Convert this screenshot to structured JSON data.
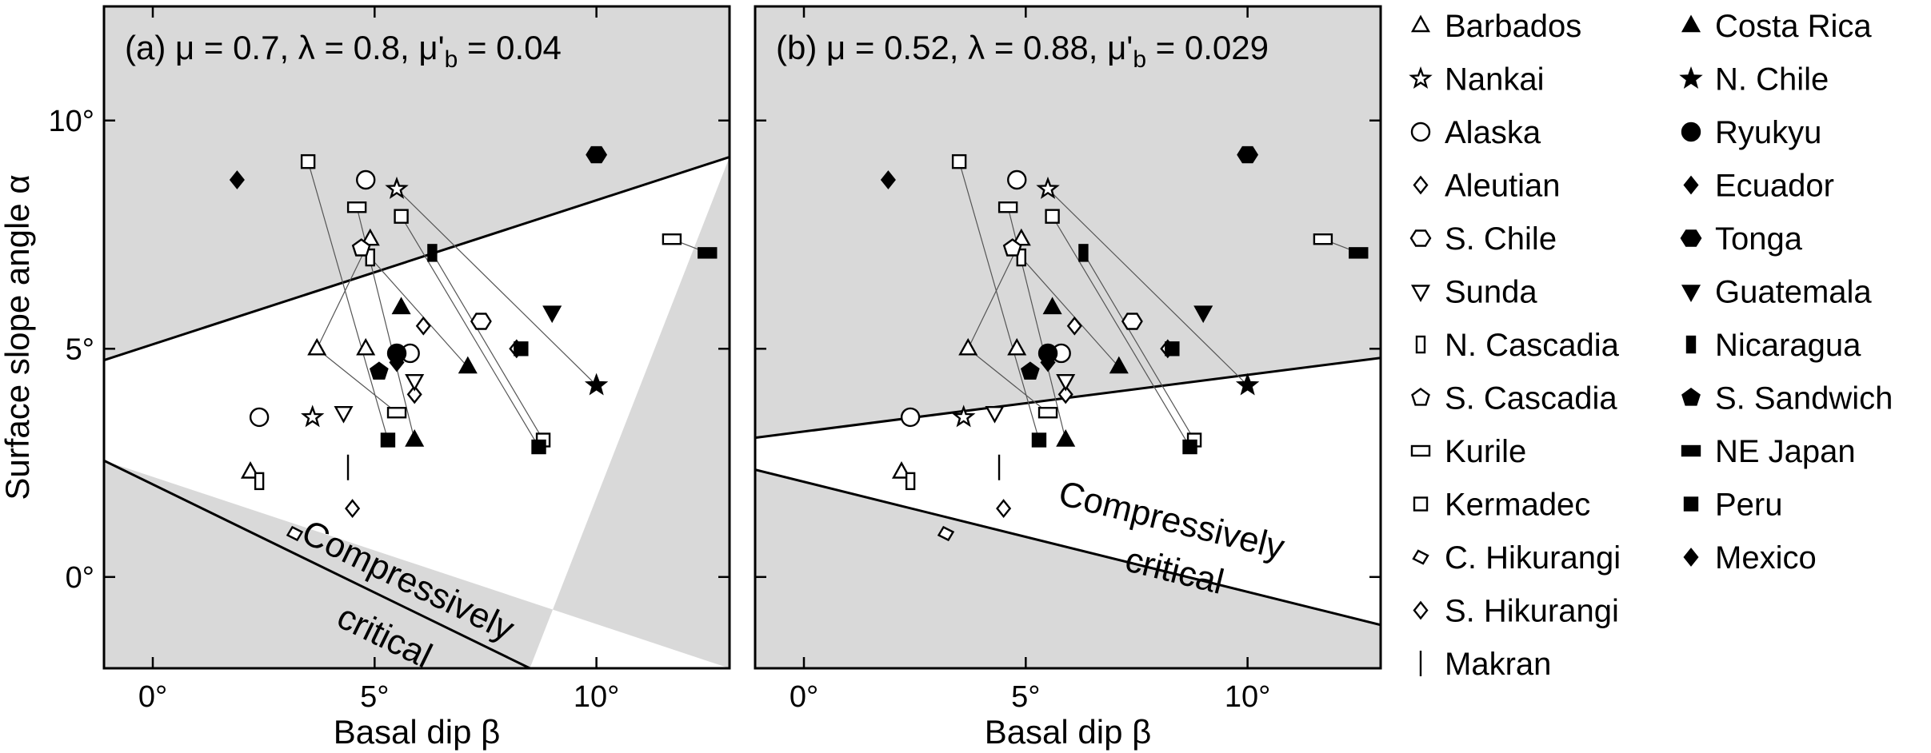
{
  "chart_data": {
    "type": "scatter",
    "x_axis": {
      "label": "Basal dip β",
      "range": [
        -1.1,
        13.0
      ],
      "ticks": [
        0,
        5,
        10
      ],
      "tick_labels": [
        "0°",
        "5°",
        "10°"
      ]
    },
    "y_axis": {
      "label": "Surface slope angle α",
      "range": [
        -2.0,
        12.5
      ],
      "ticks": [
        0,
        5,
        10
      ],
      "tick_labels": [
        "0°",
        "5°",
        "10°"
      ]
    },
    "grid": false,
    "legend_placement": "right",
    "region_label_line1": "Compressively",
    "region_label_line2": "critical",
    "panels": [
      {
        "title": "(a) μ = 0.7, λ = 0.8, μ'",
        "title_subscript": "b",
        "title_tail": " = 0.04",
        "upper_boundary": [
          [
            -1.1,
            4.75
          ],
          [
            13.0,
            9.2
          ]
        ],
        "lower_boundary": [
          [
            -1.1,
            2.55
          ],
          [
            8.5,
            -2.0
          ]
        ],
        "points": [
          {
            "margin": "Barbados",
            "x": [
              2.2,
              3.7,
              4.9
            ],
            "y": [
              2.3,
              5.0,
              7.4
            ]
          },
          {
            "margin": "Barbados",
            "x": [
              4.8
            ],
            "y": [
              5.0
            ]
          },
          {
            "margin": "Nankai",
            "x": [
              3.6,
              5.5
            ],
            "y": [
              3.5,
              8.5
            ]
          },
          {
            "margin": "Alaska",
            "x": [
              2.4,
              4.8,
              5.8
            ],
            "y": [
              3.5,
              8.7,
              4.9
            ]
          },
          {
            "margin": "Aleutian",
            "x": [
              5.9,
              6.1,
              8.2
            ],
            "y": [
              4.0,
              5.5,
              5.0
            ]
          },
          {
            "margin": "S. Chile",
            "x": [
              7.4
            ],
            "y": [
              5.6
            ]
          },
          {
            "margin": "Sunda",
            "x": [
              4.3,
              5.9
            ],
            "y": [
              3.6,
              4.3
            ]
          },
          {
            "margin": "N. Cascadia",
            "x": [
              2.4,
              4.9
            ],
            "y": [
              2.1,
              7.0
            ]
          },
          {
            "margin": "S. Cascadia",
            "x": [
              4.7
            ],
            "y": [
              7.2
            ]
          },
          {
            "margin": "Kurile",
            "x": [
              4.6,
              5.5,
              11.7
            ],
            "y": [
              8.1,
              3.6,
              7.4
            ]
          },
          {
            "margin": "Kermadec",
            "x": [
              3.5,
              5.6,
              8.8
            ],
            "y": [
              9.1,
              7.9,
              3.0
            ]
          },
          {
            "margin": "C. Hikurangi",
            "x": [
              3.2
            ],
            "y": [
              0.95
            ]
          },
          {
            "margin": "S. Hikurangi",
            "x": [
              4.5
            ],
            "y": [
              1.5
            ]
          },
          {
            "margin": "Makran",
            "x": [
              4.4
            ],
            "y": [
              2.4
            ]
          },
          {
            "margin": "Costa Rica",
            "x": [
              5.6,
              5.9,
              7.1
            ],
            "y": [
              5.9,
              3.0,
              4.6
            ]
          },
          {
            "margin": "N. Chile",
            "x": [
              10.0
            ],
            "y": [
              4.2
            ]
          },
          {
            "margin": "Ryukyu",
            "x": [
              5.5
            ],
            "y": [
              4.9
            ]
          },
          {
            "margin": "Ecuador",
            "x": [
              1.9
            ],
            "y": [
              8.7
            ]
          },
          {
            "margin": "Tonga",
            "x": [
              10.0
            ],
            "y": [
              9.25
            ]
          },
          {
            "margin": "Guatemala",
            "x": [
              9.0
            ],
            "y": [
              5.8
            ]
          },
          {
            "margin": "Nicaragua",
            "x": [
              6.3
            ],
            "y": [
              7.1
            ]
          },
          {
            "margin": "S. Sandwich",
            "x": [
              5.1
            ],
            "y": [
              4.5
            ]
          },
          {
            "margin": "NE Japan",
            "x": [
              12.5
            ],
            "y": [
              7.1
            ]
          },
          {
            "margin": "Peru",
            "x": [
              5.3,
              8.3,
              8.7
            ],
            "y": [
              3.0,
              5.0,
              2.85
            ]
          },
          {
            "margin": "Mexico",
            "x": [
              5.5
            ],
            "y": [
              4.7
            ]
          }
        ],
        "connectors": [
          {
            "from": [
              3.5,
              9.1
            ],
            "to": [
              5.3,
              3.0
            ]
          },
          {
            "from": [
              4.9,
              7.4
            ],
            "to": [
              3.7,
              5.0
            ]
          },
          {
            "from": [
              4.6,
              8.1
            ],
            "to": [
              5.9,
              3.0
            ]
          },
          {
            "from": [
              5.5,
              8.5
            ],
            "to": [
              10.0,
              4.2
            ]
          },
          {
            "from": [
              5.6,
              7.9
            ],
            "to": [
              8.7,
              2.85
            ]
          },
          {
            "from": [
              6.3,
              7.1
            ],
            "to": [
              8.8,
              3.0
            ]
          },
          {
            "from": [
              4.9,
              7.0
            ],
            "to": [
              7.1,
              4.6
            ]
          },
          {
            "from": [
              3.7,
              5.0
            ],
            "to": [
              5.5,
              3.6
            ]
          },
          {
            "from": [
              11.7,
              7.4
            ],
            "to": [
              12.5,
              7.1
            ]
          }
        ]
      },
      {
        "title": "(b) μ = 0.52, λ = 0.88, μ'",
        "title_subscript": "b",
        "title_tail": " = 0.029",
        "upper_boundary": [
          [
            -1.1,
            3.05
          ],
          [
            13.0,
            4.8
          ]
        ],
        "lower_boundary": [
          [
            -1.1,
            2.35
          ],
          [
            13.0,
            -1.05
          ]
        ],
        "points": [
          {
            "margin": "Barbados",
            "x": [
              2.2,
              3.7,
              4.9
            ],
            "y": [
              2.3,
              5.0,
              7.4
            ]
          },
          {
            "margin": "Barbados",
            "x": [
              4.8
            ],
            "y": [
              5.0
            ]
          },
          {
            "margin": "Nankai",
            "x": [
              3.6,
              5.5
            ],
            "y": [
              3.5,
              8.5
            ]
          },
          {
            "margin": "Alaska",
            "x": [
              2.4,
              4.8,
              5.8
            ],
            "y": [
              3.5,
              8.7,
              4.9
            ]
          },
          {
            "margin": "Aleutian",
            "x": [
              5.9,
              6.1,
              8.2
            ],
            "y": [
              4.0,
              5.5,
              5.0
            ]
          },
          {
            "margin": "S. Chile",
            "x": [
              7.4
            ],
            "y": [
              5.6
            ]
          },
          {
            "margin": "Sunda",
            "x": [
              4.3,
              5.9
            ],
            "y": [
              3.6,
              4.3
            ]
          },
          {
            "margin": "N. Cascadia",
            "x": [
              2.4,
              4.9
            ],
            "y": [
              2.1,
              7.0
            ]
          },
          {
            "margin": "S. Cascadia",
            "x": [
              4.7
            ],
            "y": [
              7.2
            ]
          },
          {
            "margin": "Kurile",
            "x": [
              4.6,
              5.5,
              11.7
            ],
            "y": [
              8.1,
              3.6,
              7.4
            ]
          },
          {
            "margin": "Kermadec",
            "x": [
              3.5,
              5.6,
              8.8
            ],
            "y": [
              9.1,
              7.9,
              3.0
            ]
          },
          {
            "margin": "C. Hikurangi",
            "x": [
              3.2
            ],
            "y": [
              0.95
            ]
          },
          {
            "margin": "S. Hikurangi",
            "x": [
              4.5
            ],
            "y": [
              1.5
            ]
          },
          {
            "margin": "Makran",
            "x": [
              4.4
            ],
            "y": [
              2.4
            ]
          },
          {
            "margin": "Costa Rica",
            "x": [
              5.6,
              5.9,
              7.1
            ],
            "y": [
              5.9,
              3.0,
              4.6
            ]
          },
          {
            "margin": "N. Chile",
            "x": [
              10.0
            ],
            "y": [
              4.2
            ]
          },
          {
            "margin": "Ryukyu",
            "x": [
              5.5
            ],
            "y": [
              4.9
            ]
          },
          {
            "margin": "Ecuador",
            "x": [
              1.9
            ],
            "y": [
              8.7
            ]
          },
          {
            "margin": "Tonga",
            "x": [
              10.0
            ],
            "y": [
              9.25
            ]
          },
          {
            "margin": "Guatemala",
            "x": [
              9.0
            ],
            "y": [
              5.8
            ]
          },
          {
            "margin": "Nicaragua",
            "x": [
              6.3
            ],
            "y": [
              7.1
            ]
          },
          {
            "margin": "S. Sandwich",
            "x": [
              5.1
            ],
            "y": [
              4.5
            ]
          },
          {
            "margin": "NE Japan",
            "x": [
              12.5
            ],
            "y": [
              7.1
            ]
          },
          {
            "margin": "Peru",
            "x": [
              5.3,
              8.3,
              8.7
            ],
            "y": [
              3.0,
              5.0,
              2.85
            ]
          },
          {
            "margin": "Mexico",
            "x": [
              5.5
            ],
            "y": [
              4.7
            ]
          }
        ],
        "connectors": [
          {
            "from": [
              3.5,
              9.1
            ],
            "to": [
              5.3,
              3.0
            ]
          },
          {
            "from": [
              4.9,
              7.4
            ],
            "to": [
              3.7,
              5.0
            ]
          },
          {
            "from": [
              4.6,
              8.1
            ],
            "to": [
              5.9,
              3.0
            ]
          },
          {
            "from": [
              5.5,
              8.5
            ],
            "to": [
              10.0,
              4.2
            ]
          },
          {
            "from": [
              5.6,
              7.9
            ],
            "to": [
              8.7,
              2.85
            ]
          },
          {
            "from": [
              6.3,
              7.1
            ],
            "to": [
              8.8,
              3.0
            ]
          },
          {
            "from": [
              4.9,
              7.0
            ],
            "to": [
              7.1,
              4.6
            ]
          },
          {
            "from": [
              3.7,
              5.0
            ],
            "to": [
              5.5,
              3.6
            ]
          },
          {
            "from": [
              11.7,
              7.4
            ],
            "to": [
              12.5,
              7.1
            ]
          }
        ]
      }
    ],
    "legend": [
      {
        "label": "Barbados",
        "marker": "triangle-up",
        "fill": "open"
      },
      {
        "label": "Nankai",
        "marker": "star",
        "fill": "open"
      },
      {
        "label": "Alaska",
        "marker": "circle",
        "fill": "open"
      },
      {
        "label": "Aleutian",
        "marker": "diamond",
        "fill": "open"
      },
      {
        "label": "S. Chile",
        "marker": "hexagon",
        "fill": "open"
      },
      {
        "label": "Sunda",
        "marker": "triangle-down",
        "fill": "open"
      },
      {
        "label": "N. Cascadia",
        "marker": "rect-tall",
        "fill": "open"
      },
      {
        "label": "S. Cascadia",
        "marker": "pentagon",
        "fill": "open"
      },
      {
        "label": "Kurile",
        "marker": "rect-wide",
        "fill": "open"
      },
      {
        "label": "Kermadec",
        "marker": "square",
        "fill": "open"
      },
      {
        "label": "C. Hikurangi",
        "marker": "diamond-tilt",
        "fill": "open"
      },
      {
        "label": "S. Hikurangi",
        "marker": "diamond",
        "fill": "open"
      },
      {
        "label": "Makran",
        "marker": "vbar",
        "fill": "open"
      },
      {
        "label": "Costa Rica",
        "marker": "triangle-up",
        "fill": "filled"
      },
      {
        "label": "N. Chile",
        "marker": "star",
        "fill": "filled"
      },
      {
        "label": "Ryukyu",
        "marker": "circle",
        "fill": "filled"
      },
      {
        "label": "Ecuador",
        "marker": "diamond",
        "fill": "filled"
      },
      {
        "label": "Tonga",
        "marker": "hexagon",
        "fill": "filled"
      },
      {
        "label": "Guatemala",
        "marker": "triangle-down",
        "fill": "filled"
      },
      {
        "label": "Nicaragua",
        "marker": "rect-tall",
        "fill": "filled"
      },
      {
        "label": "S. Sandwich",
        "marker": "pentagon",
        "fill": "filled"
      },
      {
        "label": "NE Japan",
        "marker": "rect-wide",
        "fill": "filled"
      },
      {
        "label": "Peru",
        "marker": "square",
        "fill": "filled"
      },
      {
        "label": "Mexico",
        "marker": "diamond",
        "fill": "filled"
      }
    ],
    "colors": {
      "shade": "#d9d9d9",
      "ink": "#000000",
      "connector": "#555555"
    }
  }
}
